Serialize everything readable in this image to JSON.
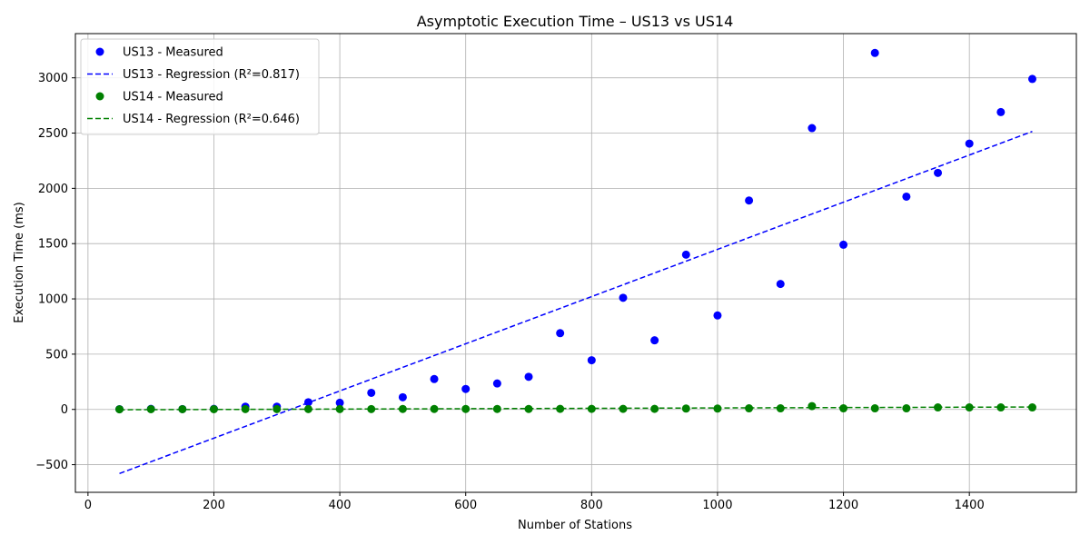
{
  "chart_data": {
    "type": "scatter",
    "title": "Asymptotic Execution Time – US13 vs US14",
    "xlabel": "Number of Stations",
    "ylabel": "Execution Time (ms)",
    "xlim": [
      -20,
      1570
    ],
    "ylim": [
      -750,
      3400
    ],
    "xticks": [
      0,
      200,
      400,
      600,
      800,
      1000,
      1200,
      1400
    ],
    "yticks": [
      -500,
      0,
      500,
      1000,
      1500,
      2000,
      2500,
      3000
    ],
    "grid": true,
    "legend_position": "top-left",
    "x": [
      50,
      100,
      150,
      200,
      250,
      300,
      350,
      400,
      450,
      500,
      550,
      600,
      650,
      700,
      750,
      800,
      850,
      900,
      950,
      1000,
      1050,
      1100,
      1150,
      1200,
      1250,
      1300,
      1350,
      1400,
      1450,
      1500
    ],
    "series": [
      {
        "name": "US13 - Measured",
        "kind": "scatter",
        "color": "#0000ff",
        "values": [
          2,
          5,
          3,
          5,
          25,
          25,
          65,
          60,
          150,
          110,
          275,
          185,
          235,
          295,
          690,
          445,
          1010,
          625,
          1400,
          850,
          1890,
          1135,
          2545,
          1490,
          3225,
          1925,
          2140,
          2405,
          2690,
          2990
        ]
      },
      {
        "name": "US13 - Regression",
        "r2_label": "(R²=0.817)",
        "kind": "regression",
        "color": "#0000ff",
        "line": [
          [
            50,
            -580
          ],
          [
            1500,
            2515
          ]
        ]
      },
      {
        "name": "US14 - Measured",
        "kind": "scatter",
        "color": "#008000",
        "values": [
          1,
          2,
          2,
          2,
          3,
          3,
          3,
          3,
          3,
          4,
          4,
          4,
          4,
          4,
          5,
          5,
          5,
          5,
          8,
          8,
          10,
          10,
          30,
          10,
          10,
          10,
          18,
          18,
          18,
          18
        ]
      },
      {
        "name": "US14 - Regression",
        "r2_label": "(R²=0.646)",
        "kind": "regression",
        "color": "#008000",
        "line": [
          [
            50,
            -3
          ],
          [
            1500,
            22
          ]
        ]
      }
    ]
  }
}
